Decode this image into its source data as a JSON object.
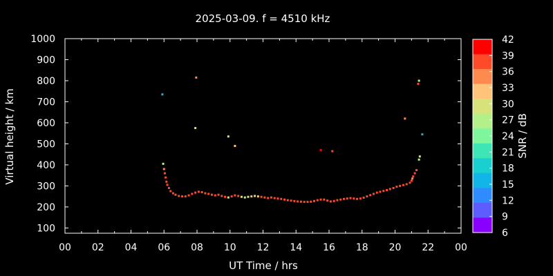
{
  "chart_data": {
    "type": "scatter",
    "title": "2025-03-09. f = 4510 kHz",
    "xlabel": "UT Time / hrs",
    "ylabel": "Virtual height / km",
    "xlim": [
      0,
      24
    ],
    "ylim": [
      75,
      1000
    ],
    "xticks": [
      "00",
      "02",
      "04",
      "06",
      "08",
      "10",
      "12",
      "14",
      "16",
      "18",
      "20",
      "22",
      "00"
    ],
    "yticks": [
      100,
      200,
      300,
      400,
      500,
      600,
      700,
      800,
      900,
      1000
    ],
    "grid": false,
    "colorbar": {
      "label": "SNR / dB",
      "min": 6,
      "max": 42,
      "ticks": [
        6,
        9,
        12,
        15,
        18,
        21,
        24,
        27,
        30,
        33,
        36,
        39,
        42
      ],
      "colors": [
        "#8a00ff",
        "#5c5cff",
        "#2f8cff",
        "#12b5e8",
        "#19cfcf",
        "#3de6b4",
        "#7ff59c",
        "#b3f08a",
        "#d8e27a",
        "#ffc37a",
        "#ff8a50",
        "#ff4a2a",
        "#ff0000"
      ]
    },
    "series": [
      {
        "points": [
          [
            5.95,
            405,
            27
          ],
          [
            6.0,
            380,
            36
          ],
          [
            6.05,
            360,
            38
          ],
          [
            6.1,
            340,
            39
          ],
          [
            6.15,
            320,
            40
          ],
          [
            6.2,
            305,
            40
          ],
          [
            6.3,
            290,
            40
          ],
          [
            6.4,
            275,
            40
          ],
          [
            6.55,
            265,
            40
          ],
          [
            6.7,
            258,
            40
          ],
          [
            6.9,
            252,
            40
          ],
          [
            7.1,
            250,
            40
          ],
          [
            7.3,
            250,
            40
          ],
          [
            7.5,
            255,
            40
          ],
          [
            7.7,
            262,
            40
          ],
          [
            7.9,
            268,
            40
          ],
          [
            8.1,
            272,
            40
          ],
          [
            8.3,
            270,
            40
          ],
          [
            8.5,
            265,
            40
          ],
          [
            8.7,
            262,
            40
          ],
          [
            8.9,
            258,
            40
          ],
          [
            9.1,
            255,
            38
          ],
          [
            9.3,
            258,
            40
          ],
          [
            9.5,
            252,
            40
          ],
          [
            9.7,
            248,
            40
          ],
          [
            9.9,
            245,
            30
          ],
          [
            10.1,
            250,
            38
          ],
          [
            10.3,
            255,
            40
          ],
          [
            10.5,
            252,
            40
          ],
          [
            10.7,
            248,
            30
          ],
          [
            10.9,
            245,
            28
          ],
          [
            11.1,
            248,
            30
          ],
          [
            11.3,
            250,
            34
          ],
          [
            11.5,
            252,
            30
          ],
          [
            11.7,
            250,
            32
          ],
          [
            11.9,
            248,
            40
          ],
          [
            12.1,
            245,
            40
          ],
          [
            12.3,
            242,
            40
          ],
          [
            12.5,
            245,
            40
          ],
          [
            12.7,
            242,
            40
          ],
          [
            12.9,
            240,
            40
          ],
          [
            13.1,
            238,
            40
          ],
          [
            13.3,
            235,
            40
          ],
          [
            13.5,
            232,
            40
          ],
          [
            13.7,
            230,
            40
          ],
          [
            13.9,
            228,
            40
          ],
          [
            14.1,
            226,
            40
          ],
          [
            14.3,
            225,
            40
          ],
          [
            14.5,
            224,
            40
          ],
          [
            14.7,
            224,
            40
          ],
          [
            14.9,
            225,
            40
          ],
          [
            15.1,
            228,
            40
          ],
          [
            15.3,
            232,
            40
          ],
          [
            15.5,
            235,
            40
          ],
          [
            15.7,
            235,
            40
          ],
          [
            15.9,
            230,
            40
          ],
          [
            16.1,
            226,
            40
          ],
          [
            16.3,
            228,
            40
          ],
          [
            16.5,
            232,
            40
          ],
          [
            16.7,
            235,
            40
          ],
          [
            16.9,
            238,
            40
          ],
          [
            17.1,
            240,
            40
          ],
          [
            17.3,
            242,
            40
          ],
          [
            17.5,
            240,
            40
          ],
          [
            17.7,
            238,
            40
          ],
          [
            17.9,
            240,
            40
          ],
          [
            18.1,
            244,
            40
          ],
          [
            18.3,
            250,
            40
          ],
          [
            18.5,
            256,
            40
          ],
          [
            18.7,
            262,
            40
          ],
          [
            18.9,
            268,
            40
          ],
          [
            19.1,
            272,
            40
          ],
          [
            19.3,
            276,
            40
          ],
          [
            19.5,
            280,
            40
          ],
          [
            19.7,
            285,
            40
          ],
          [
            19.9,
            290,
            40
          ],
          [
            20.1,
            296,
            40
          ],
          [
            20.3,
            300,
            40
          ],
          [
            20.5,
            304,
            40
          ],
          [
            20.7,
            308,
            40
          ],
          [
            20.9,
            315,
            40
          ],
          [
            21.0,
            325,
            38
          ],
          [
            21.05,
            335,
            36
          ],
          [
            21.1,
            345,
            38
          ],
          [
            21.2,
            360,
            38
          ],
          [
            21.3,
            375,
            38
          ],
          [
            21.45,
            425,
            27
          ],
          [
            21.5,
            440,
            29
          ]
        ]
      },
      {
        "points": [
          [
            5.9,
            735,
            15
          ],
          [
            7.95,
            815,
            36
          ],
          [
            7.9,
            575,
            30
          ],
          [
            9.9,
            535,
            30
          ],
          [
            10.3,
            490,
            33
          ],
          [
            15.5,
            470,
            42
          ],
          [
            16.2,
            465,
            40
          ],
          [
            20.6,
            620,
            36
          ],
          [
            21.4,
            785,
            38
          ],
          [
            21.45,
            800,
            27
          ],
          [
            21.65,
            545,
            15
          ]
        ]
      }
    ]
  }
}
